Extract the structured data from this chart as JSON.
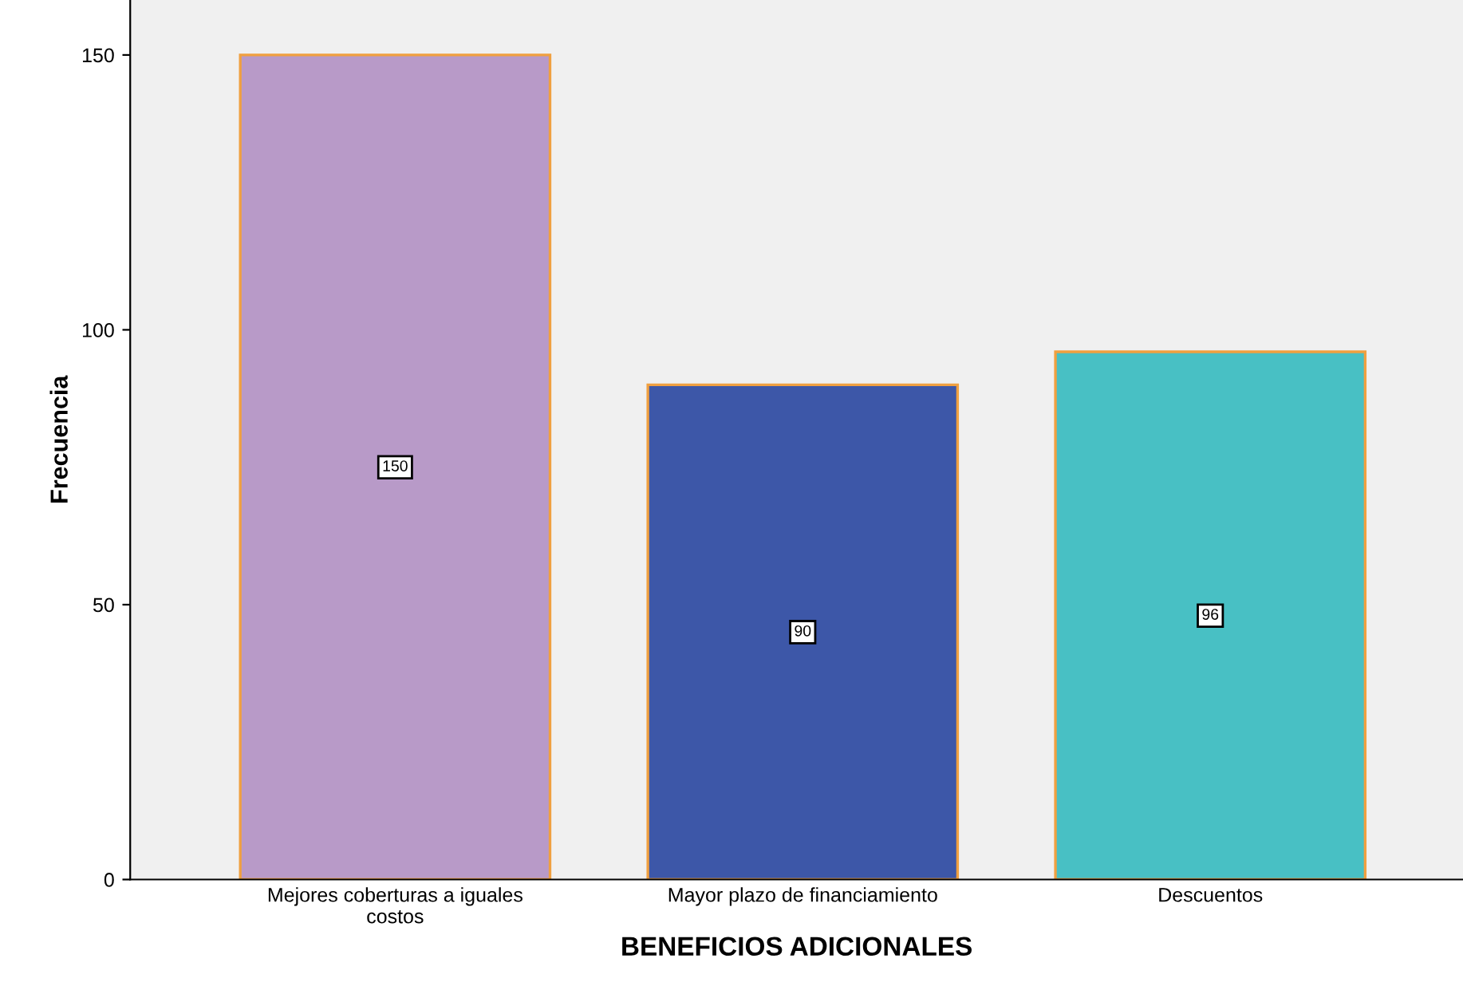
{
  "chart_data": {
    "type": "bar",
    "xlabel": "BENEFICIOS ADICIONALES",
    "ylabel": "Frecuencia",
    "categories": [
      "Mejores coberturas a iguales\ncostos",
      "Mayor plazo de financiamiento",
      "Descuentos"
    ],
    "values": [
      150,
      90,
      96
    ],
    "colors": [
      "#b89ac8",
      "#3d57a8",
      "#48c0c4"
    ],
    "ylim": [
      0,
      160
    ],
    "yticks": [
      0,
      50,
      100,
      150
    ],
    "grid": false,
    "data_labels": true
  }
}
